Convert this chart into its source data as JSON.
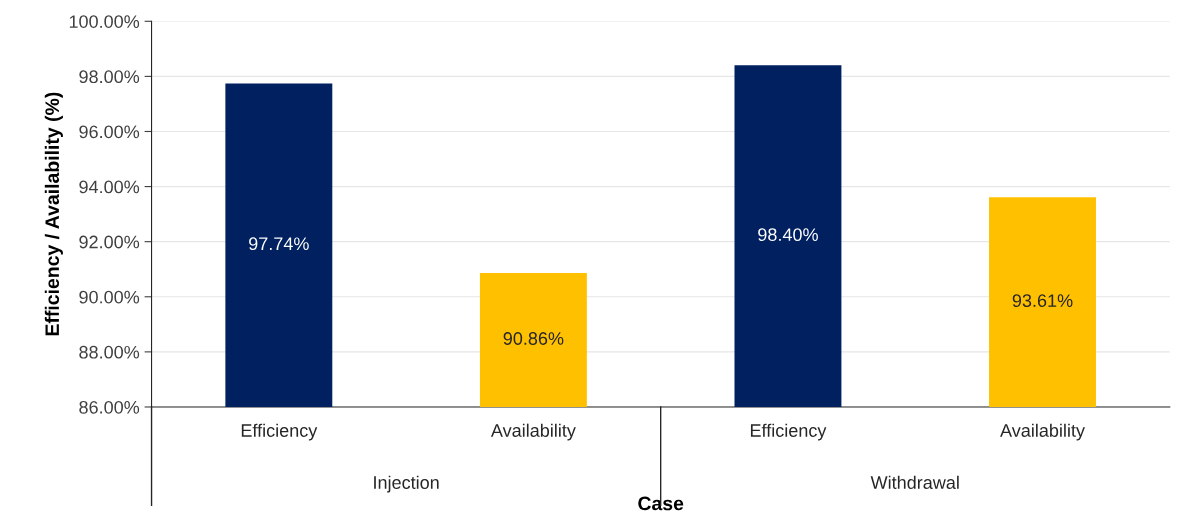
{
  "chart_data": {
    "type": "bar",
    "xlabel": "Case",
    "ylabel": "Efficiency / Availability (%)",
    "categories": [
      "Efficiency",
      "Availability",
      "Efficiency",
      "Availability"
    ],
    "values": [
      97.74,
      90.86,
      98.4,
      93.61
    ],
    "colors": [
      "#002060",
      "#ffc000",
      "#002060",
      "#ffc000"
    ],
    "value_labels": [
      "97.74%",
      "90.86%",
      "98.40%",
      "93.61%"
    ],
    "annotations": [
      "Injection",
      "Withdrawal"
    ],
    "ylim": [
      86,
      100
    ],
    "yticks": [
      {
        "value": 86,
        "label": "86.00%"
      },
      {
        "value": 88,
        "label": "88.00%"
      },
      {
        "value": 90,
        "label": "90.00%"
      },
      {
        "value": 92,
        "label": "92.00%"
      },
      {
        "value": 94,
        "label": "94.00%"
      },
      {
        "value": 96,
        "label": "96.00%"
      },
      {
        "value": 98,
        "label": "98.00%"
      },
      {
        "value": 100,
        "label": "100.00%"
      }
    ],
    "grid": "y",
    "legend": false
  }
}
